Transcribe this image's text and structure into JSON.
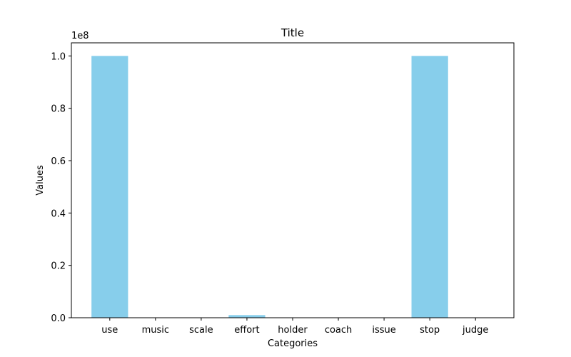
{
  "chart_data": {
    "type": "bar",
    "title": "Title",
    "xlabel": "Categories",
    "ylabel": "Values",
    "categories": [
      "use",
      "music",
      "scale",
      "effort",
      "holder",
      "coach",
      "issue",
      "stop",
      "judge"
    ],
    "values": [
      100000000,
      0,
      0,
      1000000,
      0,
      0,
      0,
      100000000,
      0
    ],
    "ylim": [
      0,
      105000000
    ],
    "y_ticks": [
      0,
      20000000,
      40000000,
      60000000,
      80000000,
      100000000
    ],
    "y_tick_labels": [
      "0.0",
      "0.2",
      "0.4",
      "0.6",
      "0.8",
      "1.0"
    ],
    "y_offset_label": "1e8",
    "bar_color": "#87CEEB",
    "grid": false
  }
}
